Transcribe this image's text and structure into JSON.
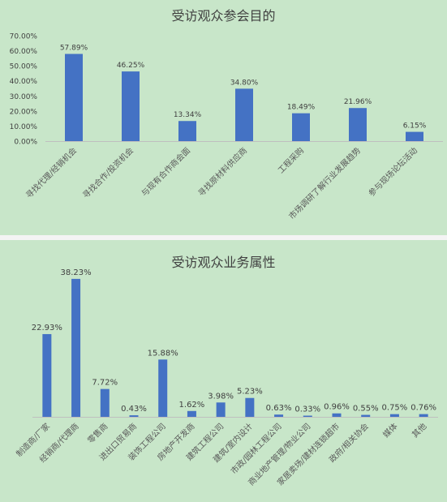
{
  "chart_data": [
    {
      "type": "bar",
      "title": "受访观众参会目的",
      "xlabel": "",
      "ylabel": "",
      "ylim": [
        0,
        70
      ],
      "yticks": [
        "0.00%",
        "10.00%",
        "20.00%",
        "30.00%",
        "40.00%",
        "50.00%",
        "60.00%",
        "70.00%"
      ],
      "categories": [
        "寻找代理/经销机会",
        "寻找合作/投资机会",
        "与现有合作商会面",
        "寻找原材料供应商",
        "工程采购",
        "市场调研了解行业发展趋势",
        "参与现场论坛活动"
      ],
      "values": [
        57.89,
        46.25,
        13.34,
        34.8,
        18.49,
        21.96,
        6.15
      ],
      "data_labels": [
        "57.89%",
        "46.25%",
        "13.34%",
        "34.80%",
        "18.49%",
        "21.96%",
        "6.15%"
      ],
      "bar_color": "#4472c4",
      "grid": false
    },
    {
      "type": "bar",
      "title": "受访观众业务属性",
      "xlabel": "",
      "ylabel": "",
      "ylim": [
        0,
        40
      ],
      "categories": [
        "制造商/厂家",
        "经销商/代理商",
        "零售商",
        "进出口贸易商",
        "装饰工程公司",
        "房地产开发商",
        "建筑工程公司",
        "建筑/室内设计",
        "市政/园林工程公司",
        "商业地产管理/物业公司",
        "家居卖场/建材连锁超市",
        "政府/相关协会",
        "媒体",
        "其他"
      ],
      "values": [
        22.93,
        38.23,
        7.72,
        0.43,
        15.88,
        1.62,
        3.98,
        5.23,
        0.63,
        0.33,
        0.96,
        0.55,
        0.75,
        0.76
      ],
      "data_labels": [
        "22.93%",
        "38.23%",
        "7.72%",
        "0.43%",
        "15.88%",
        "1.62%",
        "3.98%",
        "5.23%",
        "0.63%",
        "0.33%",
        "0.96%",
        "0.55%",
        "0.75%",
        "0.76%"
      ],
      "bar_color": "#4472c4",
      "grid": false
    }
  ]
}
